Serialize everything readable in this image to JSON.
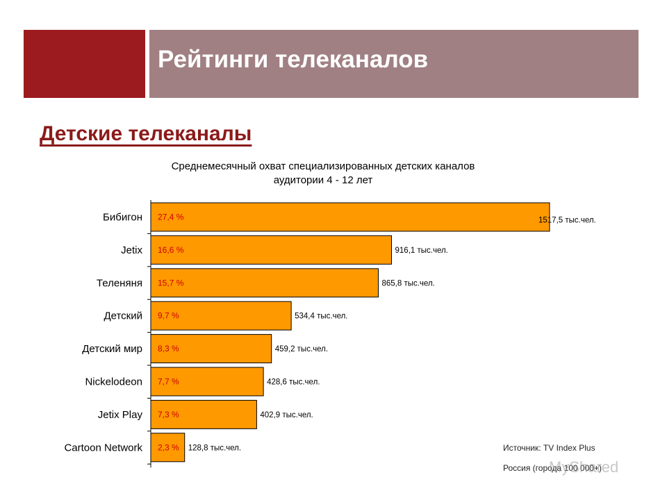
{
  "header": {
    "title": "Рейтинги телеканалов",
    "accent_color": "#9b1b1f",
    "band_color": "#a08083"
  },
  "subtitle": "Детские телеканалы",
  "chart_title": {
    "line1": "Среднемесячный охват специализированных детских каналов",
    "line2": "аудитории 4 - 12 лет"
  },
  "chart_data": {
    "type": "bar",
    "orientation": "horizontal",
    "categories": [
      "Бибигон",
      "Jetix",
      "Теленяня",
      "Детский",
      "Детский мир",
      "Nickelodeon",
      "Jetix Play",
      "Cartoon Network"
    ],
    "values": [
      1517.5,
      916.1,
      865.8,
      534.4,
      459.2,
      428.6,
      402.9,
      128.8
    ],
    "percent_labels": [
      "27,4 %",
      "16,6 %",
      "15,7 %",
      "9,7 %",
      "8,3 %",
      "7,7 %",
      "7,3 %",
      "2,3 %"
    ],
    "value_labels": [
      "1517,5 тыс.чел.",
      "916,1 тыс.чел.",
      "865,8 тыс.чел.",
      "534,4 тыс.чел.",
      "459,2 тыс.чел.",
      "428,6 тыс.чел.",
      "402,9 тыс.чел.",
      "128,8 тыс.чел."
    ],
    "bar_color": "#ff9900",
    "percent_label_color": "#cc0000",
    "grid": false,
    "legend": "none"
  },
  "source": {
    "line1": "Источник: TV Index Plus",
    "line2": "Россия (города 100 000+)"
  },
  "watermark": "MyShared"
}
